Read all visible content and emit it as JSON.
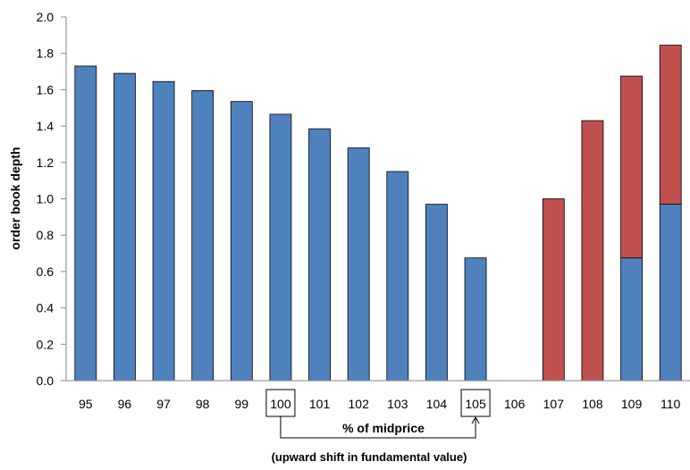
{
  "chart_data": {
    "type": "bar",
    "stacked": true,
    "categories": [
      "95",
      "96",
      "97",
      "98",
      "99",
      "100",
      "101",
      "102",
      "103",
      "104",
      "105",
      "106",
      "107",
      "108",
      "109",
      "110"
    ],
    "series": [
      {
        "color": "#4F81BD",
        "values": [
          1.73,
          1.69,
          1.645,
          1.595,
          1.535,
          1.465,
          1.385,
          1.28,
          1.15,
          0.97,
          0.675,
          0,
          0,
          0,
          0.675,
          0.97
        ]
      },
      {
        "color": "#C0504D",
        "values": [
          0,
          0,
          0,
          0,
          0,
          0,
          0,
          0,
          0,
          0,
          0,
          0,
          1.0,
          1.43,
          1.0,
          0.875
        ]
      }
    ],
    "title": "",
    "xlabel": "% of midprice",
    "ylabel": "order book depth",
    "ylim": [
      0,
      2.0
    ],
    "yticks": [
      "0.0",
      "0.2",
      "0.4",
      "0.6",
      "0.8",
      "1.0",
      "1.2",
      "1.4",
      "1.6",
      "1.8",
      "2.0"
    ],
    "grid": false,
    "legend": "none",
    "annotation": {
      "boxed_categories": [
        "100",
        "105"
      ],
      "text": "(upward shift in fundamental value)"
    }
  }
}
